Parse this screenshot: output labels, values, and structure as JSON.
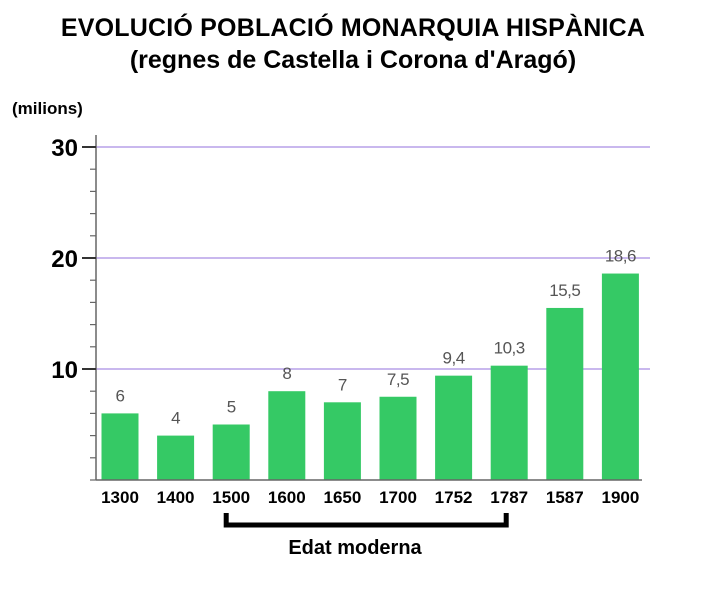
{
  "title": "EVOLUCIÓ POBLACIÓ MONARQUIA HISPÀNICA",
  "subtitle": "(regnes de Castella i Corona d'Aragó)",
  "unit_label": "(milions)",
  "era_label": "Edat moderna",
  "colors": {
    "bar": "#35c965",
    "grid": "#c9b8ee",
    "axis": "#666666",
    "bracket": "#000000"
  },
  "chart_data": {
    "type": "bar",
    "title": "EVOLUCIÓ POBLACIÓ MONARQUIA HISPÀNICA",
    "subtitle": "(regnes de Castella i Corona d'Aragó)",
    "ylabel": "(milions)",
    "xlabel": "",
    "categories": [
      "1300",
      "1400",
      "1500",
      "1600",
      "1650",
      "1700",
      "1752",
      "1787",
      "1587",
      "1900"
    ],
    "values": [
      6,
      4,
      5,
      8,
      7,
      7.5,
      9.4,
      10.3,
      15.5,
      18.6
    ],
    "value_labels": [
      "6",
      "4",
      "5",
      "8",
      "7",
      "7,5",
      "9,4",
      "10,3",
      "15,5",
      "18,6"
    ],
    "ylim": [
      0,
      30
    ],
    "yticks": [
      "10",
      "20",
      "30"
    ],
    "grid": true,
    "annotations": [
      {
        "text": "Edat moderna",
        "from": "1500",
        "to": "1787"
      }
    ]
  }
}
